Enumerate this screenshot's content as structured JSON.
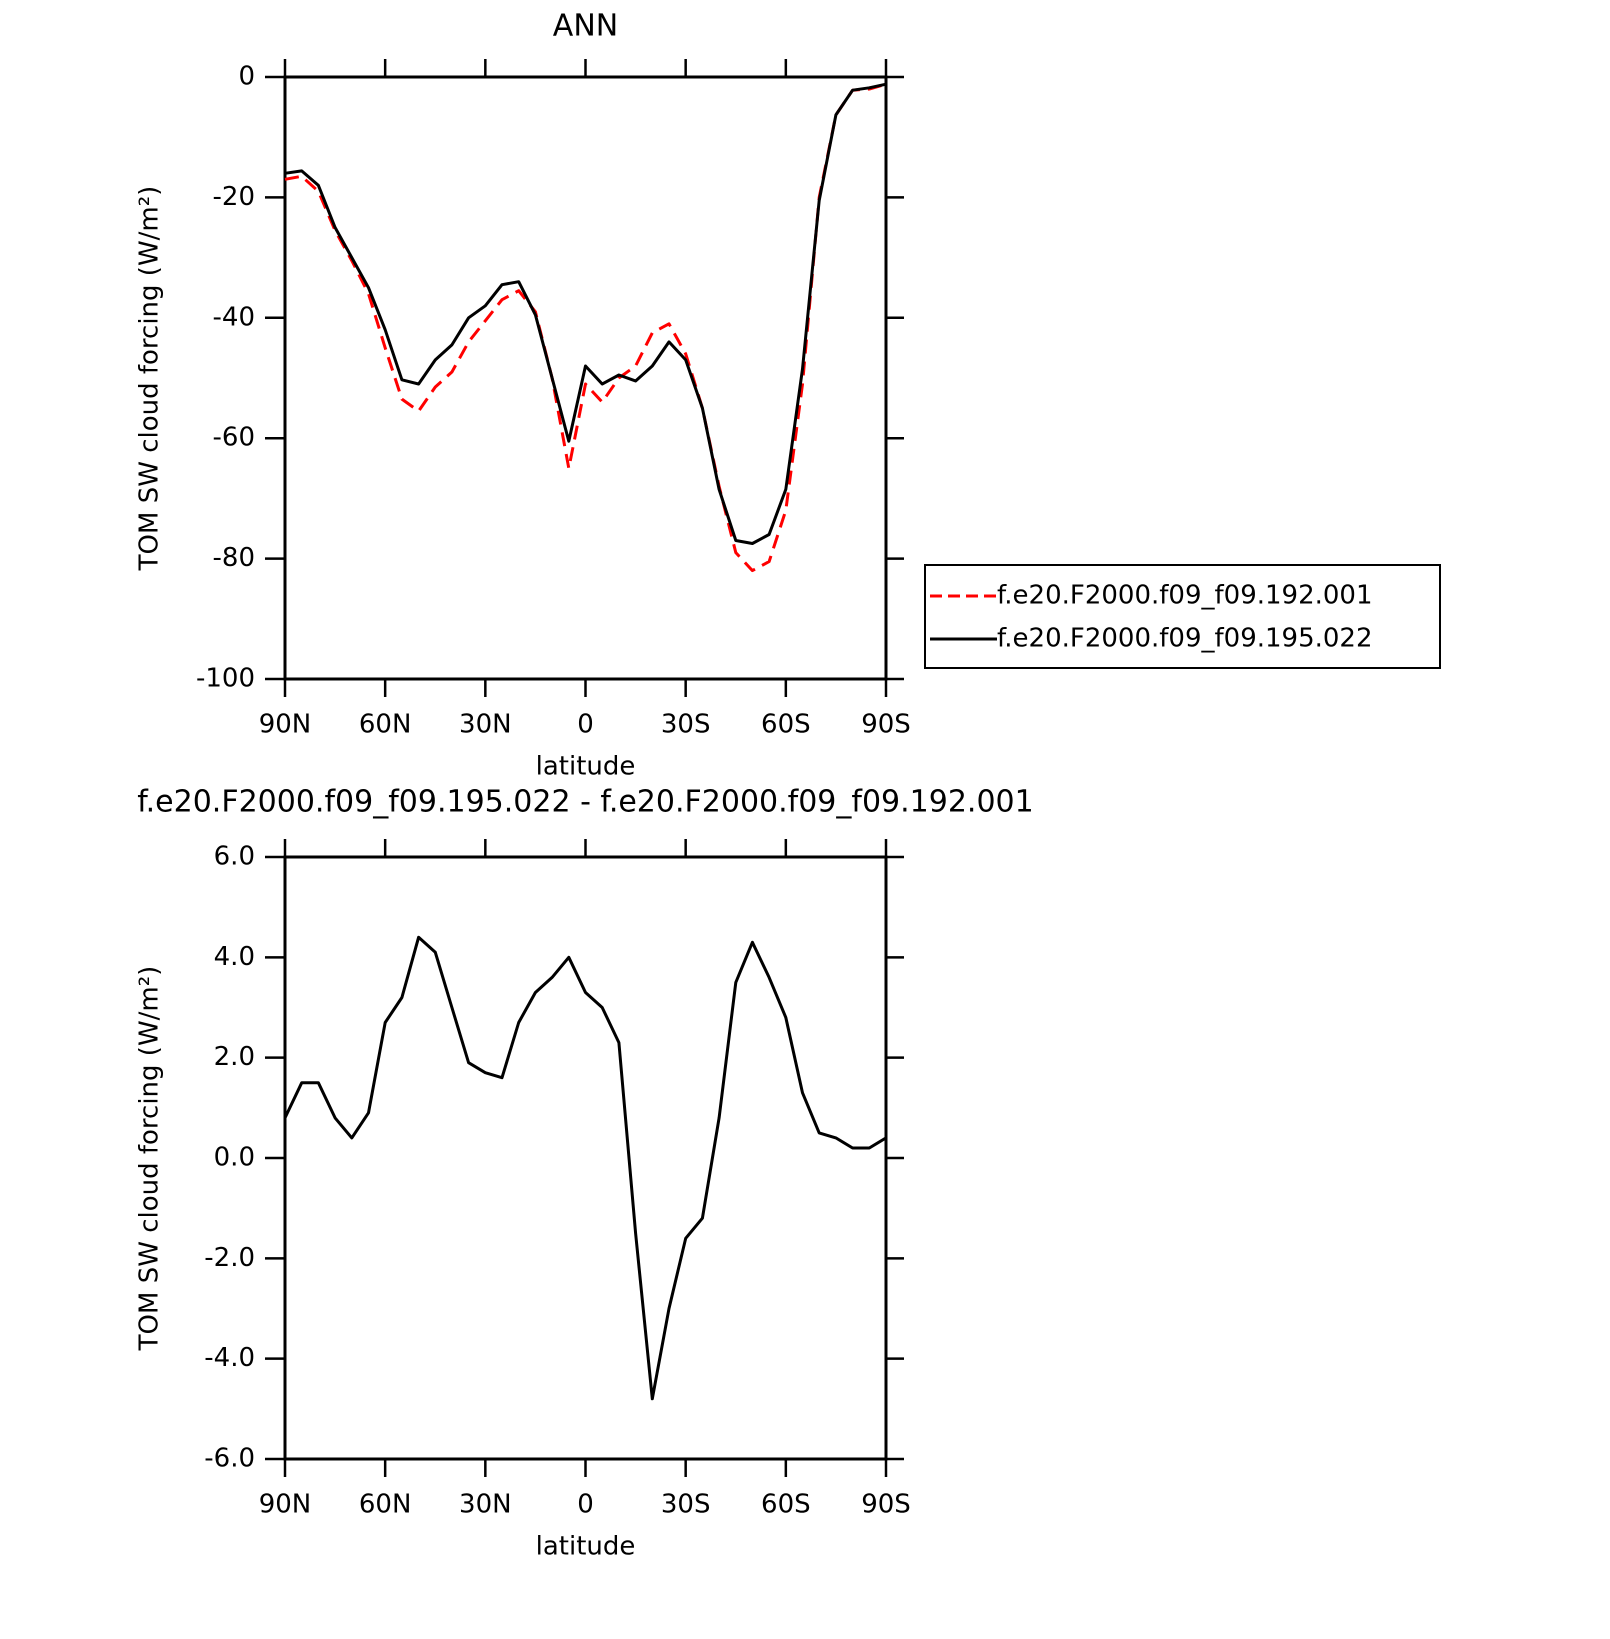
{
  "chart_data": [
    {
      "type": "line",
      "title": "ANN",
      "xlabel": "latitude",
      "ylabel": "TOM SW cloud forcing (W/m²)",
      "x": [
        90,
        85,
        80,
        75,
        70,
        65,
        60,
        55,
        50,
        45,
        40,
        35,
        30,
        25,
        20,
        15,
        10,
        5,
        0,
        -5,
        -10,
        -15,
        -20,
        -25,
        -30,
        -35,
        -40,
        -45,
        -50,
        -55,
        -60,
        -65,
        -70,
        -75,
        -80,
        -85,
        -90
      ],
      "xlim": [
        90,
        -90
      ],
      "xticks": [
        {
          "value": 90,
          "label": "90N"
        },
        {
          "value": 60,
          "label": "60N"
        },
        {
          "value": 30,
          "label": "30N"
        },
        0,
        {
          "value": -30,
          "label": "30S"
        },
        {
          "value": -60,
          "label": "60S"
        },
        {
          "value": -90,
          "label": "90S"
        }
      ],
      "ylim": [
        -100,
        0
      ],
      "yticks": [
        -100,
        -80,
        -60,
        -40,
        -20,
        0
      ],
      "legend": "right",
      "series": [
        {
          "name": "f.e20.F2000.f09_f09.192.001",
          "color": "#ff0000",
          "linestyle": "dashed",
          "values": [
            -17,
            -16.5,
            -19,
            -25.5,
            -30.5,
            -36,
            -45,
            -53.5,
            -55.5,
            -51.5,
            -49,
            -44,
            -40.5,
            -37,
            -35.5,
            -39,
            -50,
            -65,
            -51,
            -54,
            -50,
            -48,
            -42.5,
            -41,
            -46,
            -55,
            -68,
            -79,
            -82,
            -80.5,
            -72,
            -51,
            -20,
            -6.3,
            -2.2,
            -2,
            -1.2
          ]
        },
        {
          "name": "f.e20.F2000.f09_f09.195.022",
          "color": "#000000",
          "linestyle": "solid",
          "values": [
            -16,
            -15.6,
            -18,
            -25,
            -30,
            -35,
            -42,
            -50.3,
            -51,
            -47,
            -44.5,
            -40,
            -38,
            -34.5,
            -34,
            -39.5,
            -50,
            -60.5,
            -48,
            -51,
            -49.5,
            -50.5,
            -48,
            -44,
            -47,
            -55,
            -68.5,
            -77,
            -77.5,
            -76,
            -68.5,
            -48.5,
            -20.5,
            -6.3,
            -2.2,
            -1.8,
            -1.2
          ]
        }
      ]
    },
    {
      "type": "line",
      "title": "f.e20.F2000.f09_f09.195.022 - f.e20.F2000.f09_f09.192.001",
      "xlabel": "latitude",
      "ylabel": "TOM SW cloud forcing (W/m²)",
      "x": [
        90,
        85,
        80,
        75,
        70,
        65,
        60,
        55,
        50,
        45,
        40,
        35,
        30,
        25,
        20,
        15,
        10,
        5,
        0,
        -5,
        -10,
        -15,
        -20,
        -25,
        -30,
        -35,
        -40,
        -45,
        -50,
        -55,
        -60,
        -65,
        -70,
        -75,
        -80,
        -85,
        -90
      ],
      "xlim": [
        90,
        -90
      ],
      "xticks": [
        {
          "value": 90,
          "label": "90N"
        },
        {
          "value": 60,
          "label": "60N"
        },
        {
          "value": 30,
          "label": "30N"
        },
        0,
        {
          "value": -30,
          "label": "30S"
        },
        {
          "value": -60,
          "label": "60S"
        },
        {
          "value": -90,
          "label": "90S"
        }
      ],
      "ylim": [
        -6,
        6
      ],
      "yticks": [
        {
          "value": -6,
          "label": "-6.0"
        },
        {
          "value": -4,
          "label": "-4.0"
        },
        {
          "value": -2,
          "label": "-2.0"
        },
        {
          "value": 0,
          "label": "0.0"
        },
        {
          "value": 2,
          "label": "2.0"
        },
        {
          "value": 4,
          "label": "4.0"
        },
        {
          "value": 6,
          "label": "6.0"
        }
      ],
      "series": [
        {
          "color": "#000000",
          "linestyle": "solid",
          "values": [
            0.8,
            1.5,
            1.5,
            0.8,
            0.4,
            0.9,
            2.7,
            3.2,
            4.4,
            4.1,
            3.0,
            1.9,
            1.7,
            1.6,
            2.7,
            3.3,
            3.6,
            4.0,
            3.3,
            3.0,
            2.3,
            -1.5,
            -4.8,
            -3.0,
            -1.6,
            -1.2,
            0.8,
            3.5,
            4.3,
            3.6,
            2.8,
            1.3,
            0.5,
            0.4,
            0.2,
            0.2,
            0.4
          ]
        }
      ]
    }
  ]
}
